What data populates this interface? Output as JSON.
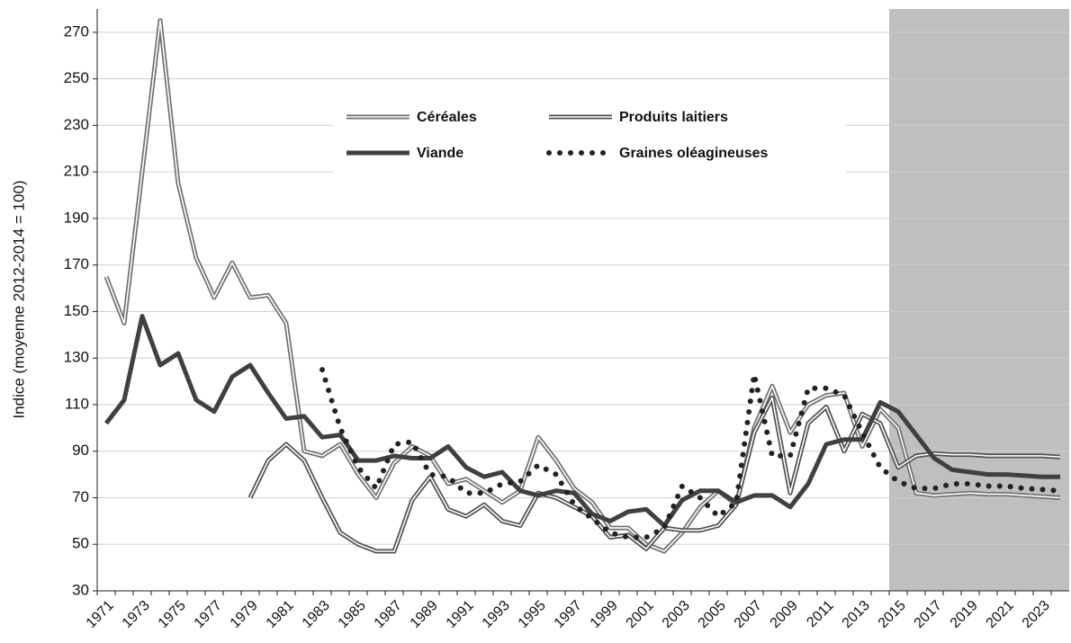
{
  "chart_data": {
    "type": "line",
    "y_label": "Indice (moyenne 2012-2014 = 100)",
    "categories": [
      "1971",
      null,
      "1973",
      null,
      "1975",
      null,
      "1977",
      null,
      "1979",
      null,
      "1981",
      null,
      "1983",
      null,
      "1985",
      null,
      "1987",
      null,
      "1989",
      null,
      "1991",
      null,
      "1993",
      null,
      "1995",
      null,
      "1997",
      null,
      "1999",
      null,
      "2001",
      null,
      "2003",
      null,
      "2005",
      null,
      "2007",
      null,
      "2009",
      null,
      "2011",
      null,
      "2013",
      null,
      "2015",
      null,
      "2017",
      null,
      "2019",
      null,
      "2021",
      null,
      "2023",
      null
    ],
    "ylim": [
      30,
      280
    ],
    "yticks": [
      30,
      50,
      70,
      90,
      110,
      130,
      150,
      170,
      190,
      210,
      230,
      250,
      270
    ],
    "grid": true,
    "series": [
      {
        "name": "Céréales",
        "color": "#707070",
        "style": "double",
        "values": [
          165,
          145,
          210,
          275,
          205,
          173,
          156,
          171,
          156,
          157,
          145,
          90,
          88,
          93,
          80,
          70,
          85,
          92,
          88,
          76,
          78,
          73,
          68,
          73,
          96,
          86,
          74,
          68,
          57,
          57,
          50,
          47,
          55,
          66,
          73,
          67,
          100,
          118,
          98,
          110,
          114,
          115,
          92,
          108,
          100,
          72,
          71,
          71.5,
          72,
          71.5,
          71.5,
          71,
          70.5,
          70
        ]
      },
      {
        "name": "Produits laitiers",
        "color": "#505050",
        "style": "double",
        "values": [
          null,
          null,
          null,
          null,
          null,
          null,
          null,
          null,
          70,
          86,
          93,
          86,
          70,
          55,
          50,
          47,
          47,
          69,
          79,
          65,
          62,
          67,
          60,
          58,
          72,
          70,
          66,
          62,
          53,
          54,
          48,
          57,
          56,
          56,
          58,
          67,
          98,
          113,
          72,
          102,
          109,
          90,
          106,
          102,
          83,
          88,
          89,
          88.5,
          88.5,
          88,
          88,
          88,
          88,
          87.5
        ]
      },
      {
        "name": "Viande",
        "color": "#404040",
        "style": "solid",
        "values": [
          102,
          112,
          148,
          127,
          132,
          112,
          107,
          122,
          127,
          115,
          104,
          105,
          96,
          97,
          86,
          86,
          88,
          87,
          87,
          92,
          83,
          79,
          81,
          73,
          71,
          73,
          72,
          63,
          60,
          64,
          65,
          58,
          69,
          73,
          73,
          68,
          71,
          71,
          66,
          76,
          93,
          95,
          95,
          111,
          107,
          97,
          87,
          82,
          81,
          80,
          80,
          79.5,
          79,
          79
        ]
      },
      {
        "name": "Graines oléagineuses",
        "color": "#222222",
        "style": "dotted",
        "values": [
          null,
          null,
          null,
          null,
          null,
          null,
          null,
          null,
          null,
          null,
          null,
          null,
          125,
          100,
          83,
          74,
          93,
          94,
          80,
          79,
          72,
          72,
          76,
          77,
          84,
          80,
          67,
          61,
          55,
          53,
          53,
          57,
          75,
          70,
          62,
          68,
          123,
          88,
          88,
          117,
          117,
          114,
          98,
          83,
          77,
          74,
          74,
          76,
          76,
          75,
          75,
          74,
          73.5,
          73
        ]
      }
    ]
  }
}
